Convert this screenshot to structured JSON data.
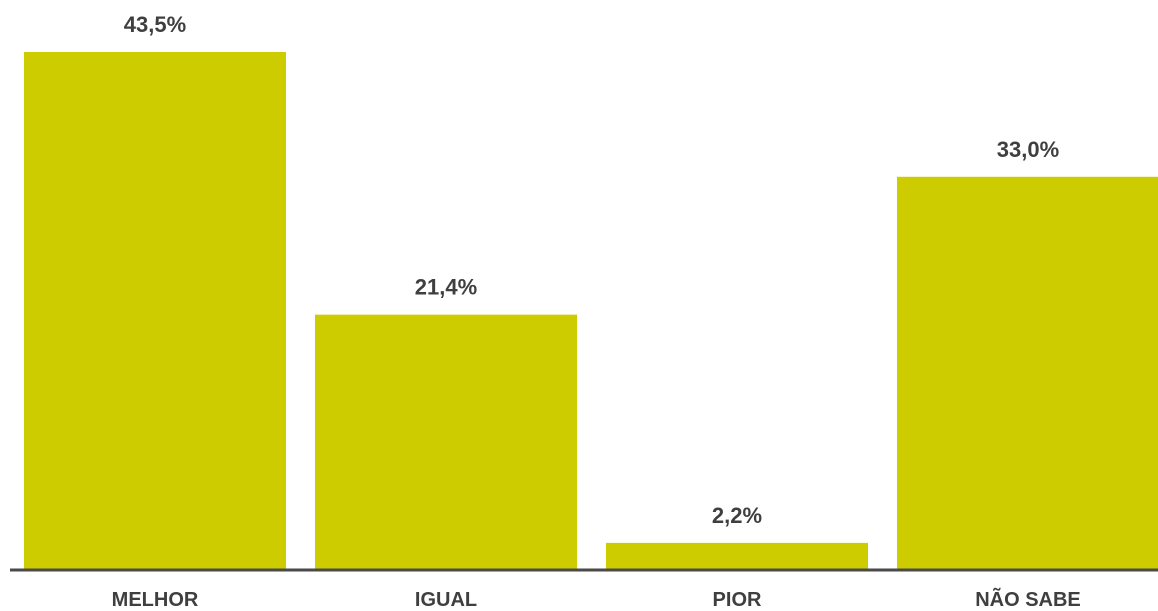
{
  "chart_data": {
    "type": "bar",
    "categories": [
      "MELHOR",
      "IGUAL",
      "PIOR",
      "NÃO SABE"
    ],
    "values": [
      43.5,
      21.4,
      2.2,
      33.0
    ],
    "value_labels": [
      "43,5%",
      "21,4%",
      "2,2%",
      "33,0%"
    ],
    "title": "",
    "xlabel": "",
    "ylabel": "",
    "ylim": [
      0,
      43.5
    ],
    "grid": false,
    "legend": "none"
  },
  "colors": {
    "bar": "#cccc00",
    "axis": "#4a4a4a",
    "text": "#3f3f3f"
  }
}
